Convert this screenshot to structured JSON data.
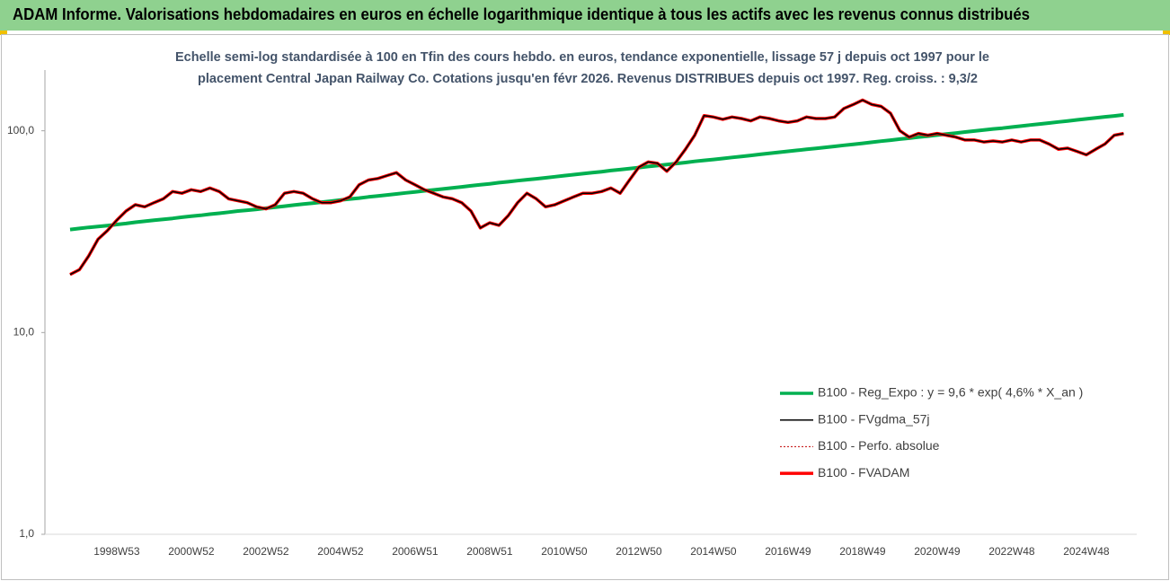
{
  "chart_data": {
    "type": "line",
    "title": "ADAM Informe. Valorisations hebdomadaires en euros en échelle logarithmique identique à tous les actifs avec les revenus connus distribués",
    "subtitle": [
      "Echelle semi-log standardisée à 100 en Tfin des cours hebdo. en euros, tendance exponentielle, lissage 57 j depuis oct 1997 pour le",
      "placement Central Japan Railway Co. Cotations jusqu'en févr 2026. Revenus DISTRIBUES depuis oct 1997. Reg. croiss. : 9,3/2"
    ],
    "log_scale": true,
    "ylim": [
      1,
      200
    ],
    "yticks": [
      {
        "value": 1,
        "label": "1,0"
      },
      {
        "value": 10,
        "label": "10,0"
      },
      {
        "value": 100,
        "label": "100,0"
      }
    ],
    "legend": "bottom-right",
    "categories": [
      null,
      null,
      null,
      null,
      null,
      "1998W53",
      null,
      null,
      null,
      null,
      null,
      null,
      null,
      "2000W52",
      null,
      null,
      null,
      null,
      null,
      null,
      null,
      "2002W52",
      null,
      null,
      null,
      null,
      null,
      null,
      null,
      "2004W52",
      null,
      null,
      null,
      null,
      null,
      null,
      null,
      "2006W51",
      null,
      null,
      null,
      null,
      null,
      null,
      null,
      "2008W51",
      null,
      null,
      null,
      null,
      null,
      null,
      null,
      "2010W50",
      null,
      null,
      null,
      null,
      null,
      null,
      null,
      "2012W50",
      null,
      null,
      null,
      null,
      null,
      null,
      null,
      "2014W50",
      null,
      null,
      null,
      null,
      null,
      null,
      null,
      "2016W49",
      null,
      null,
      null,
      null,
      null,
      null,
      null,
      "2018W49",
      null,
      null,
      null,
      null,
      null,
      null,
      null,
      "2020W49",
      null,
      null,
      null,
      null,
      null,
      null,
      null,
      "2022W48",
      null,
      null,
      null,
      null,
      null,
      null,
      null,
      "2024W48",
      null,
      null,
      null,
      null
    ],
    "series": [
      {
        "name": "B100 - Reg_Expo : y = 9,6 * exp( 4,6% *  X_an )",
        "color": "#00b050",
        "width": 4,
        "dash": false,
        "values": [
          32.4,
          32.8,
          33.2,
          33.5,
          33.9,
          34.3,
          34.7,
          35.2,
          35.6,
          36.0,
          36.4,
          36.8,
          37.3,
          37.7,
          38.1,
          38.6,
          39.0,
          39.5,
          40.0,
          40.4,
          40.8,
          41.3,
          41.8,
          42.3,
          42.8,
          43.3,
          43.8,
          44.3,
          44.8,
          45.4,
          45.9,
          46.4,
          47.0,
          47.5,
          48.1,
          48.6,
          49.2,
          49.8,
          50.4,
          50.9,
          51.5,
          52.1,
          52.7,
          53.4,
          54.0,
          54.6,
          55.3,
          55.9,
          56.6,
          57.2,
          57.8,
          58.5,
          59.2,
          59.9,
          60.6,
          61.3,
          62.0,
          62.7,
          63.5,
          64.2,
          64.9,
          65.7,
          66.5,
          67.2,
          68.0,
          68.8,
          69.6,
          70.5,
          71.3,
          72.1,
          72.9,
          73.8,
          74.6,
          75.5,
          76.4,
          77.3,
          78.2,
          79.1,
          80.0,
          80.9,
          81.8,
          82.8,
          83.7,
          84.7,
          85.7,
          86.7,
          87.7,
          88.8,
          89.8,
          90.9,
          91.9,
          93.0,
          94.1,
          95.2,
          96.3,
          97.4,
          98.6,
          99.7,
          100.9,
          102.1,
          103.1,
          104.3,
          105.5,
          106.8,
          108.0,
          109.3,
          110.6,
          111.9,
          113.2,
          114.5,
          115.8,
          117.2,
          118.5,
          119.9
        ]
      },
      {
        "name": "B100 - FVgdma_57j",
        "color": "#000000",
        "width": 1.5,
        "dash": false,
        "values": [
          19.4,
          20.5,
          24,
          29,
          32,
          36,
          40,
          43,
          42,
          44,
          46,
          50,
          49,
          51,
          50,
          52,
          50,
          46,
          45,
          44,
          42,
          41,
          43,
          49,
          50,
          49,
          46,
          44,
          44,
          45,
          47,
          54,
          57,
          58,
          60,
          62,
          57,
          54,
          51,
          49,
          47,
          46,
          44,
          40,
          33,
          35,
          34,
          38,
          44,
          49,
          46,
          42,
          43,
          45,
          47,
          49,
          49,
          50,
          52,
          49,
          57,
          66,
          70,
          69,
          63,
          70,
          81,
          95,
          119,
          117,
          114,
          117,
          115,
          112,
          117,
          115,
          112,
          110,
          112,
          117,
          115,
          115,
          117,
          129,
          135,
          142,
          135,
          132,
          122,
          100,
          93,
          97,
          95,
          97,
          95,
          93,
          90,
          90,
          88,
          89,
          88,
          90,
          88,
          90,
          90,
          86,
          81,
          82,
          79,
          76,
          81,
          86,
          95,
          97
        ]
      },
      {
        "name": "B100 - Perfo. absolue",
        "color": "#c00000",
        "width": 1,
        "dash": true,
        "values": [
          19.4,
          20.5,
          24,
          29,
          32,
          36,
          40,
          43,
          42,
          44,
          46,
          50,
          49,
          51,
          50,
          52,
          50,
          46,
          45,
          44,
          42,
          41,
          43,
          49,
          50,
          49,
          46,
          44,
          44,
          45,
          47,
          54,
          57,
          58,
          60,
          62,
          57,
          54,
          51,
          49,
          47,
          46,
          44,
          40,
          33,
          35,
          34,
          38,
          44,
          49,
          46,
          42,
          43,
          45,
          47,
          49,
          49,
          50,
          52,
          49,
          57,
          66,
          70,
          69,
          63,
          70,
          81,
          95,
          119,
          117,
          114,
          117,
          115,
          112,
          117,
          115,
          112,
          110,
          112,
          117,
          115,
          115,
          117,
          129,
          135,
          142,
          135,
          132,
          122,
          100,
          93,
          97,
          95,
          97,
          95,
          93,
          90,
          90,
          88,
          89,
          88,
          90,
          88,
          90,
          90,
          86,
          81,
          82,
          79,
          76,
          81,
          86,
          95,
          97
        ]
      },
      {
        "name": "B100 - FVADAM",
        "color": "#ff0000",
        "width": 3.5,
        "dash": false,
        "values": [
          19.4,
          20.5,
          24,
          29,
          32,
          36,
          40,
          43,
          42,
          44,
          46,
          50,
          49,
          51,
          50,
          52,
          50,
          46,
          45,
          44,
          42,
          41,
          43,
          49,
          50,
          49,
          46,
          44,
          44,
          45,
          47,
          54,
          57,
          58,
          60,
          62,
          57,
          54,
          51,
          49,
          47,
          46,
          44,
          40,
          33,
          35,
          34,
          38,
          44,
          49,
          46,
          42,
          43,
          45,
          47,
          49,
          49,
          50,
          52,
          49,
          57,
          66,
          70,
          69,
          63,
          70,
          81,
          95,
          119,
          117,
          114,
          117,
          115,
          112,
          117,
          115,
          112,
          110,
          112,
          117,
          115,
          115,
          117,
          129,
          135,
          142,
          135,
          132,
          122,
          100,
          93,
          97,
          95,
          97,
          95,
          93,
          90,
          90,
          88,
          89,
          88,
          90,
          88,
          90,
          90,
          86,
          81,
          82,
          79,
          76,
          81,
          86,
          95,
          97
        ]
      }
    ]
  }
}
